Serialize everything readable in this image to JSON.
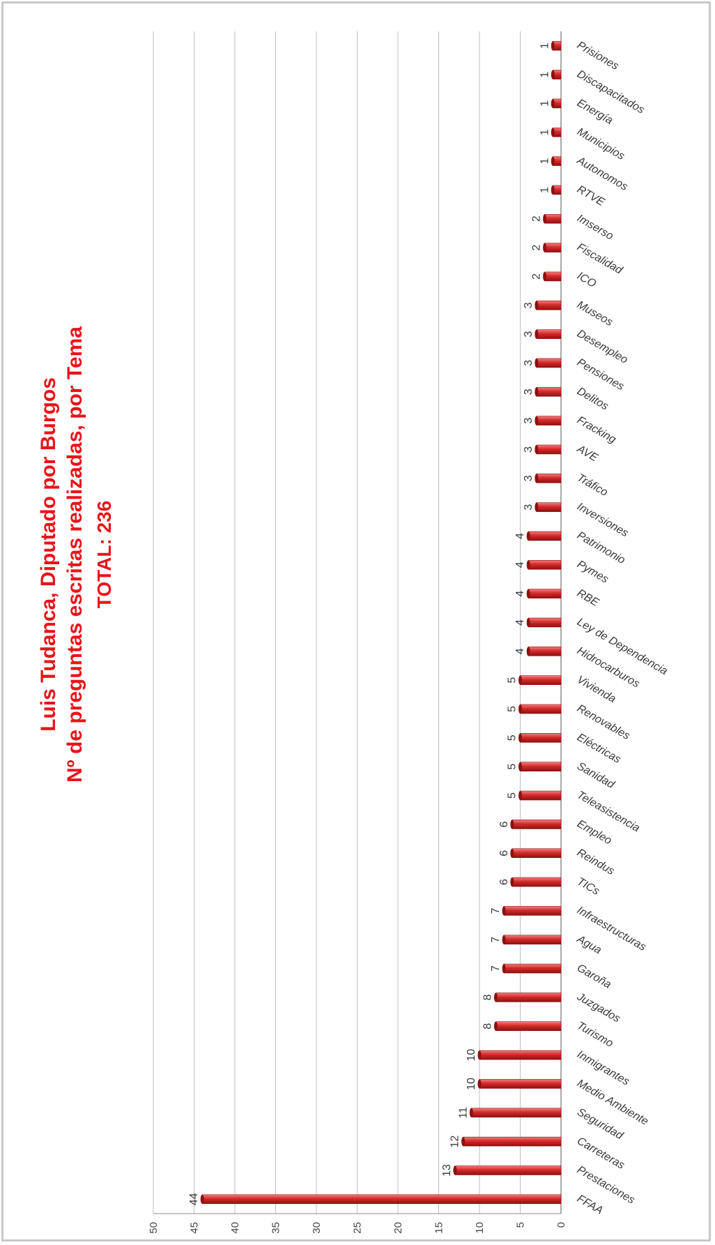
{
  "chart_data": {
    "type": "bar",
    "orientation": "horizontal",
    "title_lines": [
      "Luis Tudanca, Diputado por Burgos",
      "Nº de preguntas escritas realizadas, por Tema",
      "TOTAL: 236"
    ],
    "categories": [
      "FFAA",
      "Prestaciones",
      "Carreteras",
      "Seguridad",
      "Medio Ambiente",
      "Inmigrantes",
      "Turismo",
      "Juzgados",
      "Garoña",
      "Agua",
      "Infraestructuras",
      "TICs",
      "Reindus",
      "Empleo",
      "Teleasistencia",
      "Sanidad",
      "Eléctricas",
      "Renovables",
      "Vivienda",
      "Hidrocarburos",
      "Ley de Dependencia",
      "RBE",
      "Pymes",
      "Patrimonio",
      "Inversiones",
      "Tráfico",
      "AVE",
      "Fracking",
      "Delitos",
      "Pensiones",
      "Desempleo",
      "Museos",
      "ICO",
      "Fiscalidad",
      "Imserso",
      "RTVE",
      "Autonomos",
      "Municipios",
      "Energía",
      "Discapacitados",
      "Prisiones"
    ],
    "values": [
      44,
      13,
      12,
      11,
      10,
      10,
      8,
      8,
      7,
      7,
      7,
      6,
      6,
      6,
      5,
      5,
      5,
      5,
      5,
      4,
      4,
      4,
      4,
      4,
      3,
      3,
      3,
      3,
      3,
      3,
      3,
      3,
      2,
      2,
      2,
      1,
      1,
      1,
      1,
      1,
      1
    ],
    "value_labels": [
      "44",
      "13",
      "12",
      "11",
      "10",
      "10",
      "8",
      "8",
      "7",
      "7",
      "7",
      "6",
      "6",
      "6",
      "5",
      "5",
      "5",
      "5",
      "5",
      "4",
      "4",
      "4",
      "4",
      "4",
      "3",
      "3",
      "3",
      "3",
      "3",
      "3",
      "3",
      "3",
      "2",
      "2",
      "2",
      "1",
      "1",
      "1",
      "1",
      "1",
      "1"
    ],
    "axis": {
      "range": [
        0,
        50
      ],
      "ticks": [
        "0",
        "5",
        "10",
        "15",
        "20",
        "25",
        "30",
        "35",
        "40",
        "45",
        "50"
      ]
    },
    "grid": true,
    "legend": "none",
    "colors": {
      "bar_dark": "#8e1010",
      "bar_mid": "#d42a2a",
      "bar_light": "#f08080",
      "title": "#e8141b",
      "grid": "#bfbfbf",
      "axis": "#8c8c8c"
    }
  }
}
